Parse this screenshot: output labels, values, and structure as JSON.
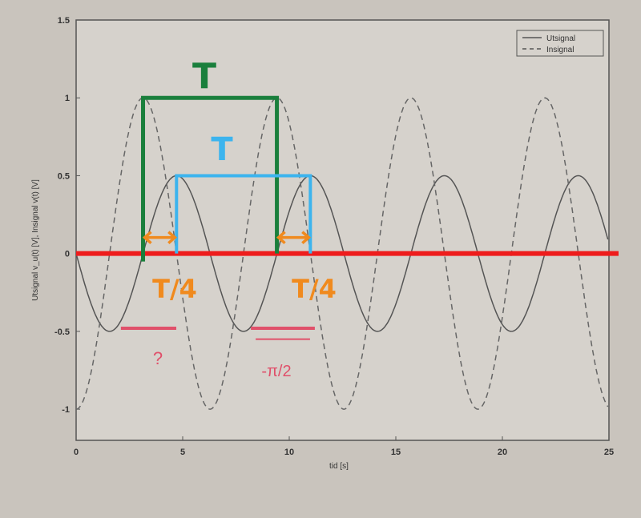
{
  "chart_data": {
    "type": "line",
    "xlabel": "tid [s]",
    "ylabel": "Utsignal v_u(t) [V], Insignal v(t) [V]",
    "xlim": [
      0,
      25
    ],
    "ylim": [
      -1.2,
      1.5
    ],
    "xticks": [
      "0",
      "5",
      "10",
      "15",
      "20",
      "25"
    ],
    "yticks": [
      "1.5",
      "1",
      "0.5",
      "0",
      "-0.5",
      "-1"
    ],
    "grid": false,
    "legend_position": "top-right",
    "series": [
      {
        "name": "Utsignal",
        "style": "solid",
        "function": "-0.5*sin(t)",
        "amplitude": 0.5,
        "color": "#555555"
      },
      {
        "name": "Insignal",
        "style": "dashed",
        "function": "-cos(t)",
        "amplitude": 1,
        "color": "#666666"
      }
    ],
    "annotations": {
      "green_period": {
        "label": "T",
        "from": 3.14,
        "to": 9.42,
        "y": 1,
        "color": "#1a7f3c"
      },
      "blue_period": {
        "label": "T",
        "from": 4.71,
        "to": 10.99,
        "y": 0.5,
        "color": "#3cb4ee"
      },
      "quarter_left": {
        "label": "T/4",
        "from": 3.14,
        "to": 4.71,
        "color": "#f08a1e"
      },
      "quarter_right": {
        "label": "T/4",
        "from": 9.42,
        "to": 10.99,
        "color": "#f08a1e"
      },
      "zero_line": {
        "y": 0,
        "color": "#ee1c1c"
      },
      "phase_question": {
        "label": "?",
        "from": 2.1,
        "to": 4.7,
        "color": "#e0506a"
      },
      "phase_answer": {
        "label": "-π/2",
        "from": 8.2,
        "to": 11.2,
        "color": "#e0506a"
      }
    }
  }
}
